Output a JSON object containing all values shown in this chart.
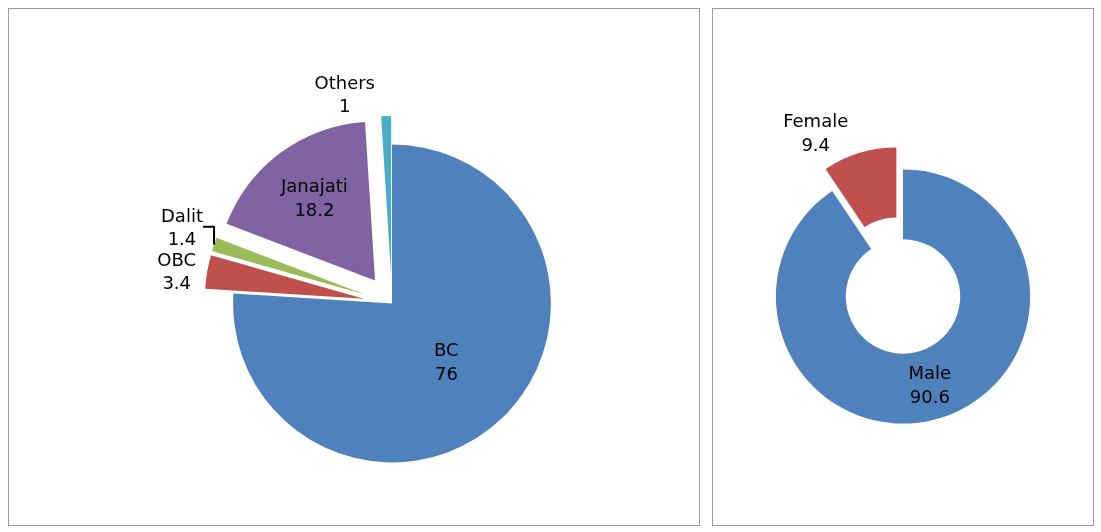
{
  "chart_data": [
    {
      "type": "pie",
      "categories": [
        "BC",
        "OBC",
        "Dalit",
        "Janajati",
        "Others"
      ],
      "values": [
        76,
        3.4,
        1.4,
        18.2,
        1
      ],
      "colors": [
        "#4f81bd",
        "#c0504d",
        "#9bbb59",
        "#8064a2",
        "#4bacc6"
      ],
      "data_labels": true
    },
    {
      "type": "donut",
      "categories": [
        "Male",
        "Female"
      ],
      "values": [
        90.6,
        9.4
      ],
      "colors": [
        "#4f81bd",
        "#c0504d"
      ],
      "data_labels": true
    }
  ]
}
